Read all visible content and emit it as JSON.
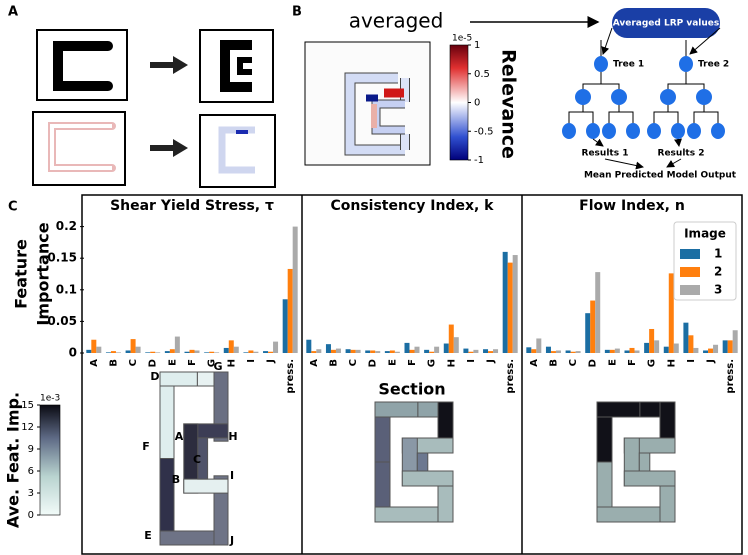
{
  "panel_a": {
    "label": "A"
  },
  "panel_b": {
    "label": "B",
    "arrow_text": "averaged",
    "colorbar": {
      "lim": [
        -1,
        1
      ],
      "ticks": [
        1,
        0.5,
        0,
        -0.5,
        -1
      ],
      "exponent": "1e-5",
      "label": "Relevance"
    },
    "tree": {
      "root": "Averaged LRP values",
      "trees": [
        "Tree 1",
        "Tree 2"
      ],
      "results": [
        "Results 1",
        "Results 2"
      ],
      "output": "Mean Predicted Model Output"
    }
  },
  "panel_c": {
    "label": "C",
    "colorbar": {
      "lim": [
        0,
        15
      ],
      "ticks": [
        0,
        3,
        6,
        9,
        12,
        15
      ],
      "exponent": "1e-3",
      "label": "Ave. Feat. Imp."
    }
  },
  "chart_data": [
    {
      "type": "bar",
      "title": "Shear Yield Stress, τ",
      "ylabel": [
        "Feature",
        "Importance"
      ],
      "categories": [
        "A",
        "B",
        "C",
        "D",
        "E",
        "F",
        "G",
        "H",
        "I",
        "J",
        "press."
      ],
      "series": [
        {
          "name": "1",
          "color": "#1b6ea3",
          "values": [
            0.005,
            0.001,
            0.004,
            0.001,
            0.003,
            0.002,
            0.001,
            0.008,
            0.001,
            0.003,
            0.085
          ]
        },
        {
          "name": "2",
          "color": "#ff7f0e",
          "values": [
            0.021,
            0.003,
            0.022,
            0.002,
            0.006,
            0.005,
            0.002,
            0.02,
            0.004,
            0.002,
            0.133
          ]
        },
        {
          "name": "3",
          "color": "#aaaaaa",
          "values": [
            0.01,
            0.001,
            0.01,
            0.001,
            0.026,
            0.004,
            0.001,
            0.01,
            0.002,
            0.018,
            0.2
          ]
        }
      ],
      "ylim": [
        0,
        0.25
      ],
      "yticks": [
        0,
        0.05,
        0.1,
        0.15,
        0.2
      ]
    },
    {
      "type": "bar",
      "title": "Consistency Index, k",
      "xlabel": "Section",
      "categories": [
        "A",
        "B",
        "C",
        "D",
        "E",
        "F",
        "G",
        "H",
        "I",
        "J",
        "press."
      ],
      "series": [
        {
          "name": "1",
          "color": "#1b6ea3",
          "values": [
            0.021,
            0.014,
            0.006,
            0.004,
            0.003,
            0.016,
            0.005,
            0.015,
            0.007,
            0.006,
            0.16
          ]
        },
        {
          "name": "2",
          "color": "#ff7f0e",
          "values": [
            0.003,
            0.005,
            0.005,
            0.004,
            0.004,
            0.005,
            0.002,
            0.045,
            0.002,
            0.003,
            0.143
          ]
        },
        {
          "name": "3",
          "color": "#aaaaaa",
          "values": [
            0.006,
            0.007,
            0.005,
            0.003,
            0.002,
            0.01,
            0.01,
            0.025,
            0.005,
            0.006,
            0.155
          ]
        }
      ],
      "ylim": [
        0,
        0.25
      ]
    },
    {
      "type": "bar",
      "title": "Flow Index, n",
      "legend_title": "Image",
      "legend": "upper right",
      "categories": [
        "A",
        "B",
        "C",
        "D",
        "E",
        "F",
        "G",
        "H",
        "I",
        "J",
        "press."
      ],
      "series": [
        {
          "name": "1",
          "color": "#1b6ea3",
          "values": [
            0.009,
            0.01,
            0.004,
            0.063,
            0.005,
            0.004,
            0.016,
            0.01,
            0.048,
            0.004,
            0.02
          ]
        },
        {
          "name": "2",
          "color": "#ff7f0e",
          "values": [
            0.006,
            0.003,
            0.002,
            0.083,
            0.005,
            0.008,
            0.038,
            0.126,
            0.028,
            0.007,
            0.02
          ]
        },
        {
          "name": "3",
          "color": "#aaaaaa",
          "values": [
            0.023,
            0.004,
            0.003,
            0.128,
            0.007,
            0.004,
            0.02,
            0.015,
            0.008,
            0.013,
            0.036
          ]
        }
      ],
      "ylim": [
        0,
        0.25
      ]
    }
  ]
}
